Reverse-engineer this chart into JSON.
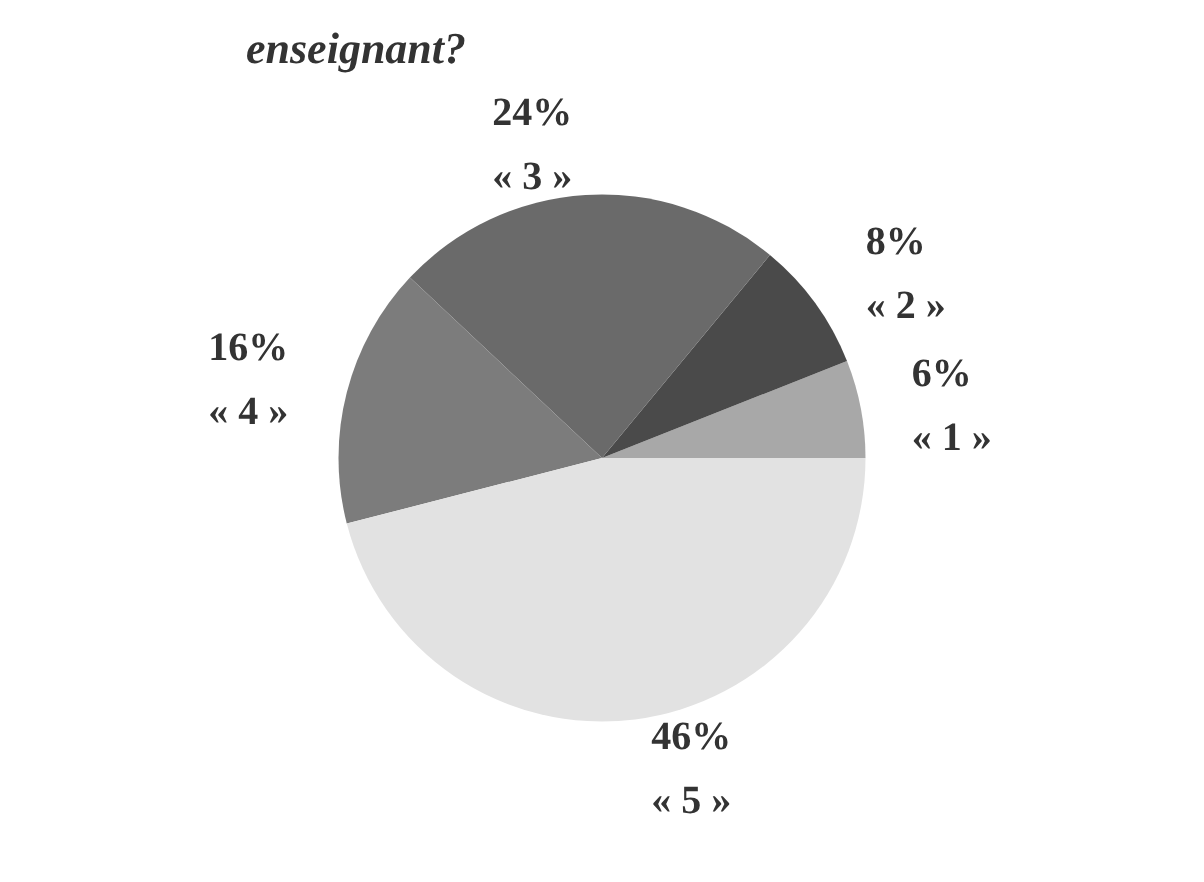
{
  "chart_data": {
    "type": "pie",
    "title": "enseignant?",
    "categories": [
      "« 1 »",
      "« 2 »",
      "« 3 »",
      "« 4 »",
      "« 5 »"
    ],
    "values": [
      6,
      8,
      24,
      16,
      46
    ],
    "value_labels": [
      "6%",
      "8%",
      "24%",
      "16%",
      "46%"
    ],
    "colors": [
      "#a8a8a8",
      "#4a4a4a",
      "#6a6a6a",
      "#7c7c7c",
      "#e2e2e2"
    ],
    "legend": false
  }
}
